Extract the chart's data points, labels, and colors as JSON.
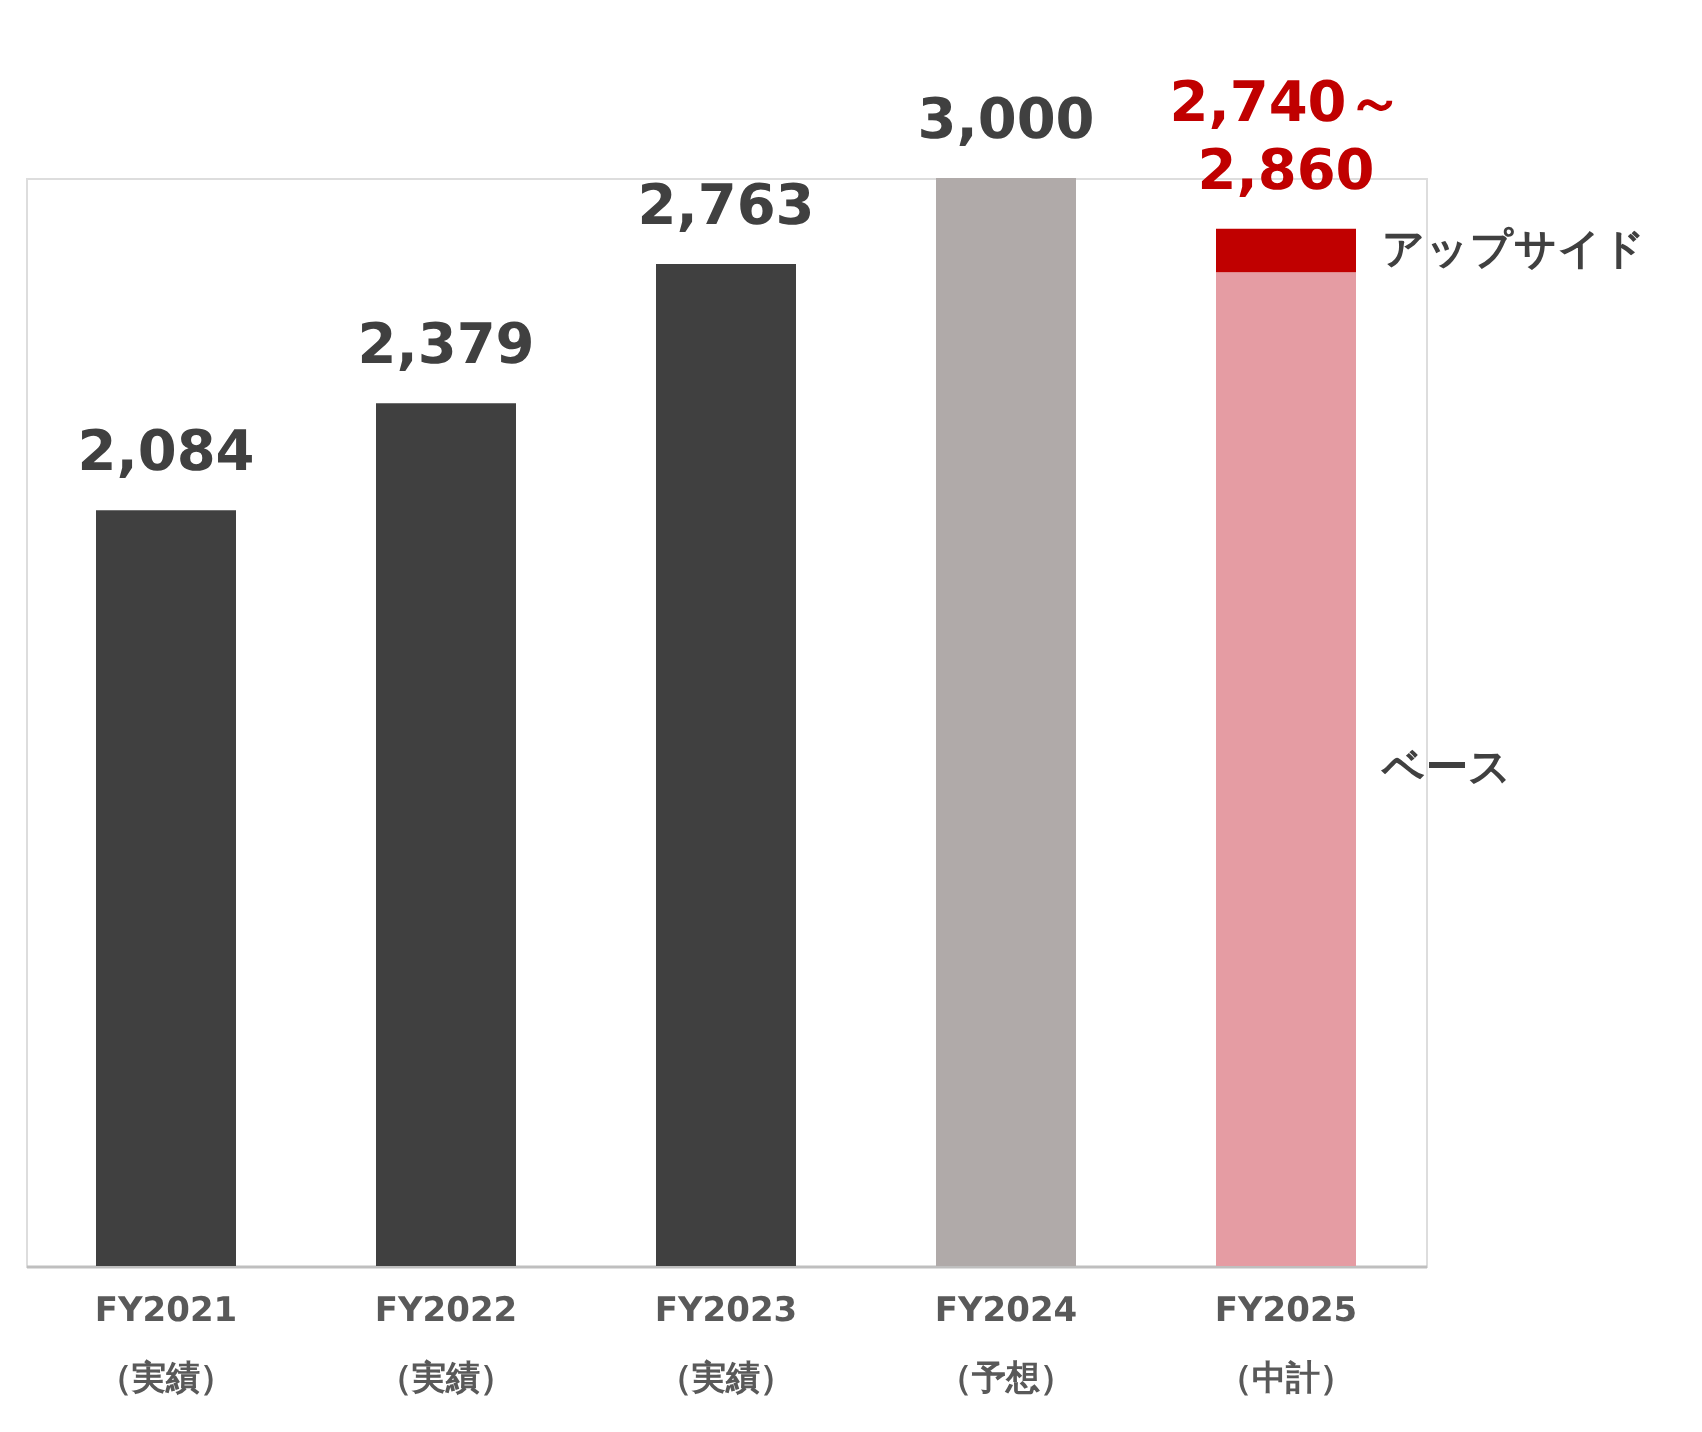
{
  "chart_data": {
    "type": "bar",
    "stacked": true,
    "categories": [
      "FY2021\n（実績）",
      "FY2022\n（実績）",
      "FY2023\n（実績）",
      "FY2024\n（予想）",
      "FY2025\n（中計）"
    ],
    "series": [
      {
        "name": "ベース",
        "colors": [
          "#404040",
          "#404040",
          "#404040",
          "#b0aaa9",
          "#e59ca3"
        ],
        "values": [
          2084,
          2379,
          2763,
          3000,
          2740
        ],
        "value_labels": [
          "2,084",
          "2,379",
          "2,763",
          "3,000",
          "2,740～"
        ]
      },
      {
        "name": "アップサイド",
        "color": "#c00000",
        "values": [
          null,
          null,
          null,
          null,
          120
        ]
      }
    ],
    "totals": [
      null,
      null,
      null,
      null,
      "2,860"
    ],
    "grid": false
  }
}
